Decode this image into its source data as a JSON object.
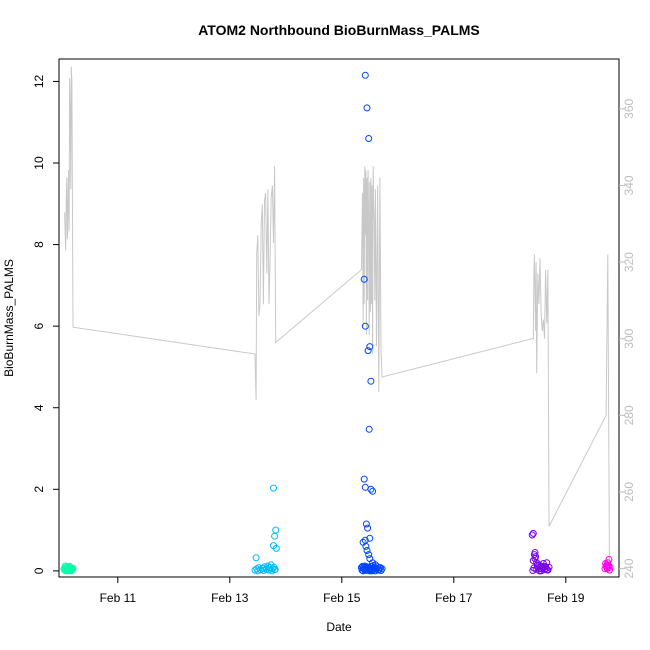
{
  "chart_data": {
    "type": "scatter",
    "title": "ATOM2 Northbound BioBurnMass_PALMS",
    "xlabel": "Date",
    "ylabel": "BioBurnMass_PALMS",
    "x_unit": "days since 2000-01-01 is not used; x values are day-of-February (decimal)",
    "xlim": [
      9.95,
      19.95
    ],
    "ylim": [
      -0.15,
      12.55
    ],
    "y2lim": [
      237.8,
      373.0
    ],
    "x_ticks": [
      {
        "value": 11,
        "label": "Feb 11"
      },
      {
        "value": 13,
        "label": "Feb 13"
      },
      {
        "value": 15,
        "label": "Feb 15"
      },
      {
        "value": 17,
        "label": "Feb 17"
      },
      {
        "value": 19,
        "label": "Feb 19"
      }
    ],
    "y_ticks": [
      {
        "value": 0,
        "label": "0"
      },
      {
        "value": 2,
        "label": "2"
      },
      {
        "value": 4,
        "label": "4"
      },
      {
        "value": 6,
        "label": "6"
      },
      {
        "value": 8,
        "label": "8"
      },
      {
        "value": 10,
        "label": "10"
      },
      {
        "value": 12,
        "label": "12"
      }
    ],
    "y2_ticks": [
      {
        "value": 240,
        "label": "240"
      },
      {
        "value": 260,
        "label": "260"
      },
      {
        "value": 280,
        "label": "280"
      },
      {
        "value": 300,
        "label": "300"
      },
      {
        "value": 320,
        "label": "320"
      },
      {
        "value": 340,
        "label": "340"
      },
      {
        "value": 360,
        "label": "360"
      }
    ],
    "grid": false,
    "legend": "none",
    "line_color": "#c8c8c8",
    "secondary_line": {
      "x": [
        10.05,
        10.07,
        10.08,
        10.09,
        10.1,
        10.11,
        10.12,
        10.13,
        10.14,
        10.15,
        10.16,
        10.17,
        10.18,
        10.2,
        13.45,
        13.47,
        13.48,
        13.5,
        13.52,
        13.54,
        13.56,
        13.58,
        13.6,
        13.62,
        13.64,
        13.66,
        13.68,
        13.7,
        13.72,
        13.74,
        13.76,
        13.78,
        13.8,
        13.82,
        15.35,
        15.37,
        15.38,
        15.39,
        15.4,
        15.41,
        15.42,
        15.43,
        15.44,
        15.45,
        15.46,
        15.47,
        15.48,
        15.49,
        15.5,
        15.51,
        15.52,
        15.53,
        15.54,
        15.55,
        15.56,
        15.57,
        15.58,
        15.59,
        15.6,
        15.62,
        15.64,
        15.66,
        15.68,
        15.7,
        15.72,
        18.4,
        18.42,
        18.43,
        18.44,
        18.46,
        18.47,
        18.48,
        18.5,
        18.52,
        18.54,
        18.56,
        18.58,
        18.6,
        18.62,
        18.64,
        18.66,
        18.68,
        18.7,
        19.72,
        19.75,
        19.78
      ],
      "y": [
        333,
        323,
        337,
        342,
        326,
        335,
        344,
        328,
        368,
        360,
        339,
        371,
        367,
        303,
        296,
        284,
        322,
        327,
        306,
        309,
        330,
        335,
        309,
        336,
        338,
        317,
        339,
        309,
        321,
        337,
        340,
        325,
        345,
        299,
        318,
        338,
        303,
        342,
        309,
        345,
        327,
        344,
        301,
        342,
        310,
        344,
        330,
        301,
        341,
        307,
        342,
        309,
        340,
        296,
        345,
        335,
        330,
        310,
        339,
        298,
        340,
        286,
        342,
        297,
        290,
        300,
        300,
        317,
        322,
        302,
        320,
        291,
        317,
        309,
        321,
        306,
        302,
        305,
        300,
        318,
        304,
        318,
        251,
        280,
        322,
        239
      ]
    },
    "series": [
      {
        "color": "#00ffaa",
        "x": [
          10.04,
          10.05,
          10.06,
          10.07,
          10.08,
          10.09,
          10.1,
          10.11,
          10.12,
          10.13,
          10.14,
          10.15,
          10.16,
          10.17,
          10.18,
          10.19,
          10.2,
          10.06,
          10.1,
          10.14,
          10.18
        ],
        "y": [
          0.05,
          0.02,
          0.08,
          0.0,
          0.04,
          0.1,
          0.03,
          0.06,
          0.01,
          0.09,
          0.04,
          0.02,
          0.07,
          0.0,
          0.05,
          0.03,
          0.06,
          0.12,
          0.0,
          0.11,
          0.02
        ]
      },
      {
        "color": "#00bbff",
        "x": [
          13.45,
          13.48,
          13.5,
          13.52,
          13.55,
          13.58,
          13.6,
          13.62,
          13.65,
          13.68,
          13.7,
          13.72,
          13.74,
          13.75,
          13.76,
          13.78,
          13.8,
          13.82,
          13.83,
          13.78,
          13.8,
          13.79,
          13.81,
          13.47,
          13.6,
          13.7
        ],
        "y": [
          0.02,
          0.05,
          0.0,
          0.08,
          0.03,
          0.06,
          0.01,
          0.1,
          0.04,
          0.12,
          0.02,
          0.07,
          0.15,
          0.0,
          0.05,
          0.62,
          0.85,
          1.0,
          0.55,
          2.03,
          0.03,
          0.09,
          0.04,
          0.32,
          0.06,
          0.08
        ]
      },
      {
        "color": "#0044ff",
        "x": [
          15.42,
          15.45,
          15.48,
          15.5,
          15.52,
          15.4,
          15.42,
          15.47,
          15.49,
          15.52,
          15.55,
          15.4,
          15.42,
          15.44,
          15.46,
          15.5,
          15.38,
          15.42,
          15.43,
          15.45,
          15.48,
          15.5,
          15.55,
          15.6,
          15.4,
          15.45,
          15.5,
          15.35,
          15.38,
          15.4,
          15.41,
          15.43,
          15.44,
          15.46,
          15.47,
          15.49,
          15.5,
          15.52,
          15.53,
          15.55,
          15.57,
          15.58,
          15.6,
          15.62,
          15.64,
          15.66,
          15.68,
          15.7,
          15.72,
          15.36,
          15.39,
          15.51,
          15.54,
          15.56,
          15.61,
          15.65,
          15.69,
          15.37,
          15.48,
          15.59
        ],
        "y": [
          12.15,
          11.35,
          10.6,
          5.5,
          4.65,
          7.15,
          6.0,
          5.4,
          3.47,
          2.0,
          1.95,
          2.25,
          2.05,
          1.15,
          1.05,
          0.8,
          0.7,
          0.75,
          0.6,
          0.5,
          0.4,
          0.3,
          0.2,
          0.15,
          0.05,
          0.1,
          0.02,
          0.08,
          0.0,
          0.04,
          0.12,
          0.06,
          0.01,
          0.09,
          0.03,
          0.07,
          0.0,
          0.05,
          0.11,
          0.02,
          0.08,
          0.04,
          0.0,
          0.06,
          0.1,
          0.03,
          0.07,
          0.01,
          0.05,
          0.02,
          0.09,
          0.04,
          0.0,
          0.13,
          0.06,
          0.02,
          0.08,
          0.11,
          0.03,
          0.07
        ]
      },
      {
        "color": "#7700ee",
        "x": [
          18.4,
          18.42,
          18.44,
          18.45,
          18.46,
          18.48,
          18.5,
          18.52,
          18.54,
          18.55,
          18.56,
          18.58,
          18.6,
          18.62,
          18.64,
          18.65,
          18.66,
          18.68,
          18.7,
          18.41,
          18.43,
          18.47,
          18.49,
          18.53,
          18.57,
          18.61,
          18.67,
          18.42,
          18.45
        ],
        "y": [
          0.88,
          0.92,
          0.4,
          0.3,
          0.35,
          0.2,
          0.1,
          0.15,
          0.05,
          0.12,
          0.0,
          0.08,
          0.18,
          0.03,
          0.1,
          0.06,
          0.2,
          0.02,
          0.09,
          0.01,
          0.07,
          0.04,
          0.14,
          0.0,
          0.05,
          0.11,
          0.03,
          0.25,
          0.45
        ]
      },
      {
        "color": "#ff00ee",
        "x": [
          19.7,
          19.72,
          19.73,
          19.74,
          19.75,
          19.76,
          19.77,
          19.78,
          19.71,
          19.74,
          19.76,
          19.79
        ],
        "y": [
          0.05,
          0.12,
          0.08,
          0.15,
          0.2,
          0.1,
          0.28,
          0.02,
          0.18,
          0.06,
          0.14,
          0.09
        ]
      }
    ]
  }
}
